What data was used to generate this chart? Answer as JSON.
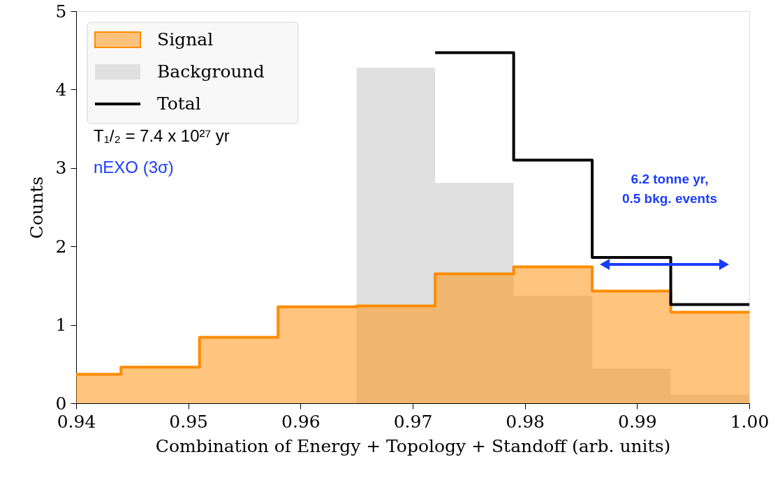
{
  "chart_data": {
    "type": "area",
    "xlabel": "Combination of Energy + Topology + Standoff (arb. units)",
    "ylabel": "Counts",
    "series": [
      {
        "name": "Background",
        "type": "area",
        "color": "#e0e0e0",
        "x": [
          0.965,
          0.972,
          0.972,
          0.979,
          0.979,
          0.986,
          0.986,
          0.993,
          0.993,
          1.0
        ],
        "values": [
          4.28,
          4.28,
          2.81,
          2.81,
          1.37,
          1.37,
          0.44,
          0.44,
          0.11,
          0.11
        ]
      },
      {
        "name": "Signal",
        "type": "area",
        "color": "#ff8c00",
        "x": [
          0.94,
          0.944,
          0.944,
          0.951,
          0.951,
          0.958,
          0.958,
          0.965,
          0.965,
          0.972,
          0.972,
          0.979,
          0.979,
          0.986,
          0.986,
          0.993,
          0.993,
          1.0
        ],
        "values": [
          0.37,
          0.37,
          0.46,
          0.46,
          0.84,
          0.84,
          1.23,
          1.23,
          1.24,
          1.24,
          1.65,
          1.65,
          1.74,
          1.74,
          1.43,
          1.43,
          1.16,
          1.16
        ]
      },
      {
        "name": "Total",
        "type": "line",
        "color": "#000000",
        "x": [
          0.972,
          0.979,
          0.979,
          0.986,
          0.986,
          0.993,
          0.993,
          1.0
        ],
        "values": [
          4.47,
          4.47,
          3.1,
          3.1,
          1.86,
          1.86,
          1.26,
          1.26
        ]
      }
    ],
    "xlim": [
      0.94,
      1.0
    ],
    "xticks": [
      0.94,
      0.95,
      0.96,
      0.97,
      0.98,
      0.99,
      {
        "value": 1.0,
        "label": "1.00"
      }
    ],
    "ylim": [
      0,
      5
    ],
    "yticks": [
      0,
      1,
      2,
      3,
      4,
      5
    ],
    "legend": "top left",
    "annotations": [
      "T₁/₂ = 7.4 x 10²⁷ yr",
      "nEXO (3σ)",
      "6.2 tonne yr,\n0.5 bkg. events"
    ]
  }
}
